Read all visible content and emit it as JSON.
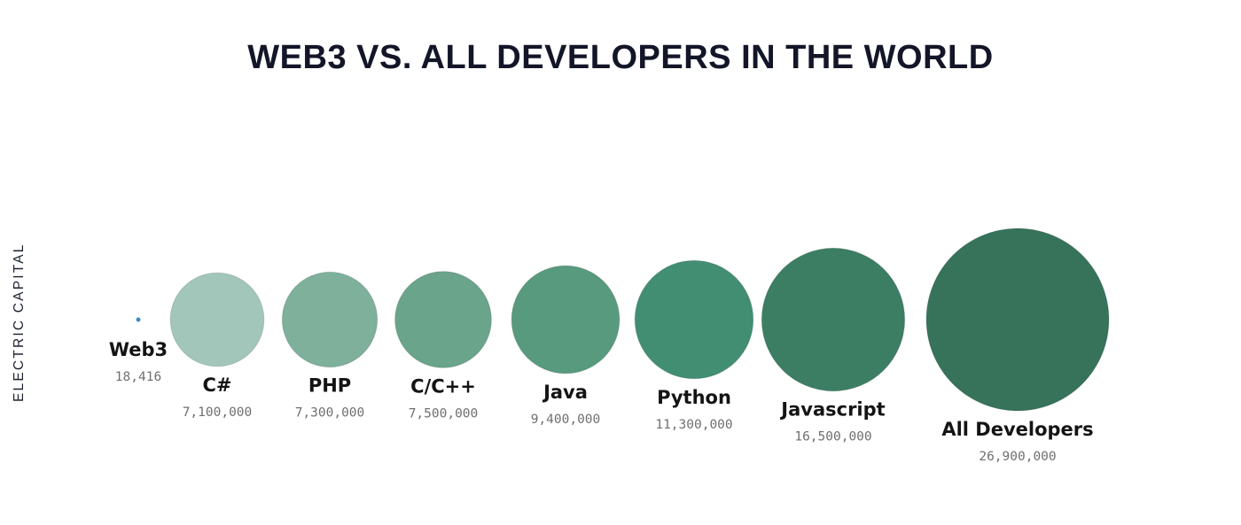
{
  "chart_data": {
    "type": "bubble",
    "title": "WEB3 VS. ALL DEVELOPERS IN THE WORLD",
    "unit": "developers",
    "series": [
      {
        "label": "Web3",
        "value_text": "18,416",
        "value": 18416,
        "color": "#3b8fc4"
      },
      {
        "label": "C#",
        "value_text": "7,100,000",
        "value": 7100000,
        "color": "#a2c6b9"
      },
      {
        "label": "PHP",
        "value_text": "7,300,000",
        "value": 7300000,
        "color": "#7eb09c"
      },
      {
        "label": "C/C++",
        "value_text": "7,500,000",
        "value": 7500000,
        "color": "#6aa48b"
      },
      {
        "label": "Java",
        "value_text": "9,400,000",
        "value": 9400000,
        "color": "#589a7e"
      },
      {
        "label": "Python",
        "value_text": "11,300,000",
        "value": 11300000,
        "color": "#428e72"
      },
      {
        "label": "Javascript",
        "value_text": "16,500,000",
        "value": 16500000,
        "color": "#3c7e64"
      },
      {
        "label": "All Developers",
        "value_text": "26,900,000",
        "value": 26900000,
        "color": "#36735a"
      }
    ]
  },
  "brand": {
    "name": "ELECTRIC CAPITAL"
  }
}
